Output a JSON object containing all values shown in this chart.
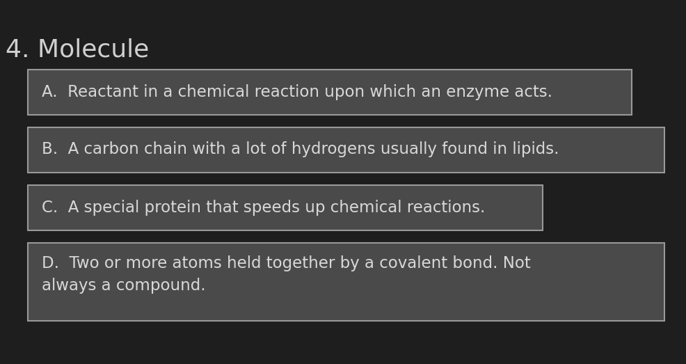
{
  "title": "4. Molecule",
  "background_color": "#1e1e1e",
  "title_color": "#d0d0d0",
  "title_fontsize": 26,
  "box_bg_color": "#4a4a4a",
  "box_edge_color": "#999999",
  "text_color": "#d8d8d8",
  "text_fontsize": 16.5,
  "options": [
    "A.  Reactant in a chemical reaction upon which an enzyme acts.",
    "B.  A carbon chain with a lot of hydrogens usually found in lipids.",
    "C.  A special protein that speeds up chemical reactions.",
    "D.  Two or more atoms held together by a covalent bond. Not\nalways a compound."
  ],
  "figsize": [
    9.87,
    5.23
  ],
  "dpi": 100
}
